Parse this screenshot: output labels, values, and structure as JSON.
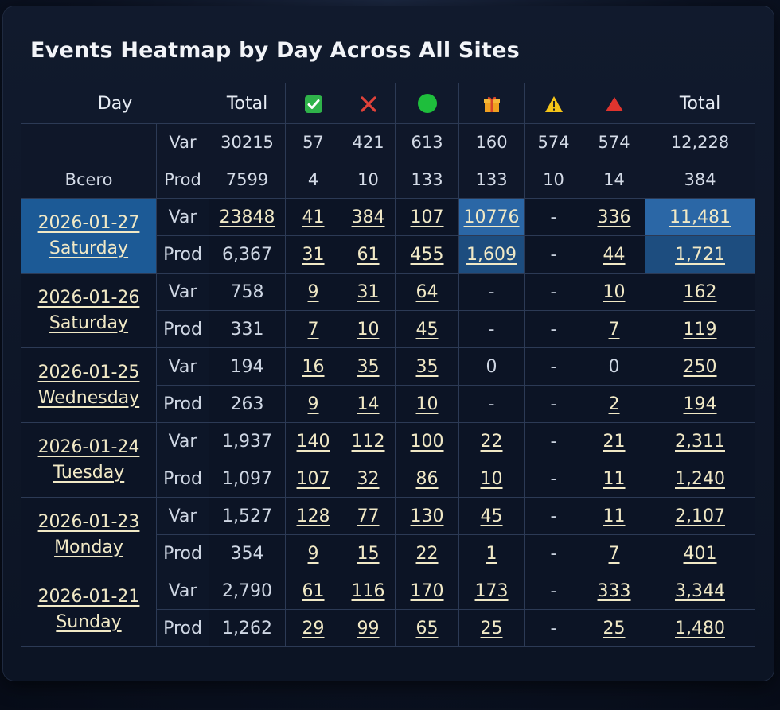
{
  "title": "Events Heatmap by Day Across All Sites",
  "header": {
    "day": "Day",
    "total": "Total",
    "icons": [
      "check-icon",
      "cross-icon",
      "green-dot-icon",
      "gift-icon",
      "warning-icon",
      "red-triangle-icon"
    ],
    "total2": "Total"
  },
  "summary": [
    {
      "label": "",
      "sub": "Var",
      "values": [
        "30215",
        "57",
        "421",
        "613",
        "160",
        "574",
        "574",
        "12,228"
      ]
    },
    {
      "label": "Bcero",
      "sub": "Prod",
      "values": [
        "7599",
        "4",
        "10",
        "133",
        "133",
        "10",
        "14",
        "384"
      ]
    }
  ],
  "days": [
    {
      "date": "2026-01-27",
      "weekday": "Saturday",
      "var": [
        "23848",
        "41",
        "384",
        "107",
        "10776",
        "-",
        "336",
        "11,481"
      ],
      "prod": [
        "6,367",
        "31",
        "61",
        "455",
        "1,609",
        "-",
        "44",
        "1,721"
      ]
    },
    {
      "date": "2026-01-26",
      "weekday": "Saturday",
      "var": [
        "758",
        "9",
        "31",
        "64",
        "-",
        "-",
        "10",
        "162"
      ],
      "prod": [
        "331",
        "7",
        "10",
        "45",
        "-",
        "-",
        "7",
        "119"
      ]
    },
    {
      "date": "2026-01-25",
      "weekday": "Wednesday",
      "var": [
        "194",
        "16",
        "35",
        "35",
        "0",
        "-",
        "0",
        "250"
      ],
      "prod": [
        "263",
        "9",
        "14",
        "10",
        "-",
        "-",
        "2",
        "194"
      ]
    },
    {
      "date": "2026-01-24",
      "weekday": "Tuesday",
      "var": [
        "1,937",
        "140",
        "112",
        "100",
        "22",
        "-",
        "21",
        "2,311"
      ],
      "prod": [
        "1,097",
        "107",
        "32",
        "86",
        "10",
        "-",
        "11",
        "1,240"
      ]
    },
    {
      "date": "2026-01-23",
      "weekday": "Monday",
      "var": [
        "1,527",
        "128",
        "77",
        "130",
        "45",
        "-",
        "11",
        "2,107"
      ],
      "prod": [
        "354",
        "9",
        "15",
        "22",
        "1",
        "-",
        "7",
        "401"
      ]
    },
    {
      "date": "2026-01-21",
      "weekday": "Sunday",
      "var": [
        "2,790",
        "61",
        "116",
        "170",
        "173",
        "-",
        "333",
        "3,344"
      ],
      "prod": [
        "1,262",
        "29",
        "99",
        "65",
        "25",
        "-",
        "25",
        "1,480"
      ]
    }
  ],
  "labels": {
    "var": "Var",
    "prod": "Prod"
  },
  "colors": {
    "highlight": "#2b67a6",
    "selected_day": "#1c5a96",
    "link_text": "#f1e9c6"
  }
}
